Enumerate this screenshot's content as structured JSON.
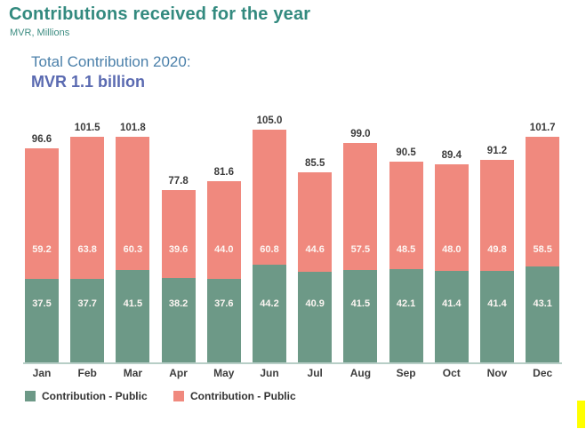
{
  "header": {
    "title": "Contributions received for the year",
    "subtitle": "MVR, Millions"
  },
  "summary": {
    "line1": "Total Contribution 2020:",
    "line2": "MVR 1.1 billion"
  },
  "chart_data": {
    "type": "bar",
    "stacked": true,
    "title": "Contributions received for the year",
    "ylabel": "MVR, Millions",
    "ylim": [
      0,
      110
    ],
    "grid": false,
    "legend_position": "bottom",
    "categories": [
      "Jan",
      "Feb",
      "Mar",
      "Apr",
      "May",
      "Jun",
      "Jul",
      "Aug",
      "Sep",
      "Oct",
      "Nov",
      "Dec"
    ],
    "series": [
      {
        "name": "Contribution - Public",
        "color": "#6d9987",
        "values": [
          37.5,
          37.7,
          41.5,
          38.2,
          37.6,
          44.2,
          40.9,
          41.5,
          42.1,
          41.4,
          41.4,
          43.1
        ]
      },
      {
        "name": "Contribution - Public",
        "color": "#f0897e",
        "values": [
          59.2,
          63.8,
          60.3,
          39.6,
          44.0,
          60.8,
          44.6,
          57.5,
          48.5,
          48.0,
          49.8,
          58.5
        ]
      }
    ],
    "totals": [
      96.6,
      101.5,
      101.8,
      77.8,
      81.6,
      105.0,
      85.5,
      99.0,
      90.5,
      89.4,
      91.2,
      101.7
    ]
  },
  "legend": {
    "items": [
      {
        "label": "Contribution - Public",
        "color": "#6d9987"
      },
      {
        "label": "Contribution - Public",
        "color": "#f0897e"
      }
    ]
  },
  "decorations": {
    "yellow_mark_color": "#ffff00",
    "baseline_color": "#b7cec6"
  }
}
